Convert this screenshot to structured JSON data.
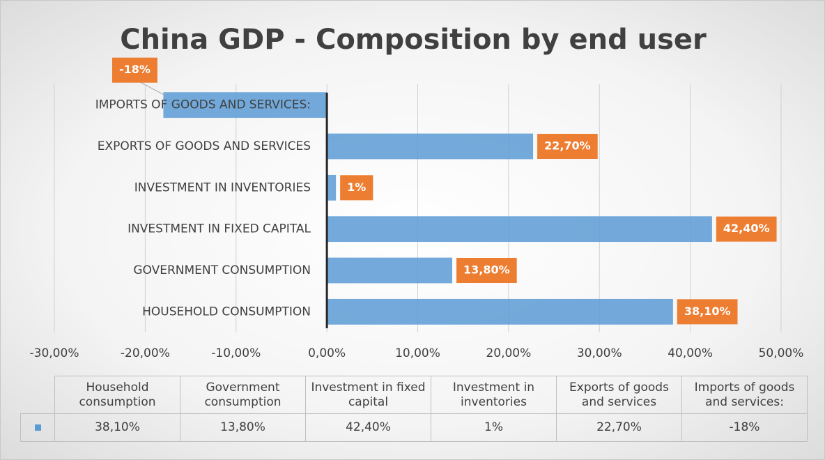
{
  "chart_data": {
    "type": "bar",
    "orientation": "horizontal",
    "title": "China GDP - Composition by end user",
    "categories": [
      "HOUSEHOLD CONSUMPTION",
      "GOVERNMENT CONSUMPTION",
      "INVESTMENT IN FIXED CAPITAL",
      "INVESTMENT IN INVENTORIES",
      "EXPORTS OF GOODS AND SERVICES",
      "IMPORTS OF GOODS AND SERVICES:"
    ],
    "values": [
      38.1,
      13.8,
      42.4,
      1,
      22.7,
      -18
    ],
    "value_labels": [
      "38,10%",
      "13,80%",
      "42,40%",
      "1%",
      "22,70%",
      "-18%"
    ],
    "color": "#5b9bd5",
    "label_color": "#ed7d31",
    "xlim": [
      -30,
      50
    ],
    "xticks": [
      {
        "value": -30,
        "label": "-30,00%"
      },
      {
        "value": -20,
        "label": "-20,00%"
      },
      {
        "value": -10,
        "label": "-10,00%"
      },
      {
        "value": 0,
        "label": "0,00%"
      },
      {
        "value": 10,
        "label": "10,00%"
      },
      {
        "value": 20,
        "label": "20,00%"
      },
      {
        "value": 30,
        "label": "30,00%"
      },
      {
        "value": 40,
        "label": "40,00%"
      },
      {
        "value": 50,
        "label": "50,00%"
      }
    ],
    "grid": true,
    "table_headers": [
      "Household consumption",
      "Government consumption",
      "Investment in fixed capital",
      "Investment in inventories",
      "Exports of goods and services",
      "Imports of goods and services:"
    ]
  }
}
